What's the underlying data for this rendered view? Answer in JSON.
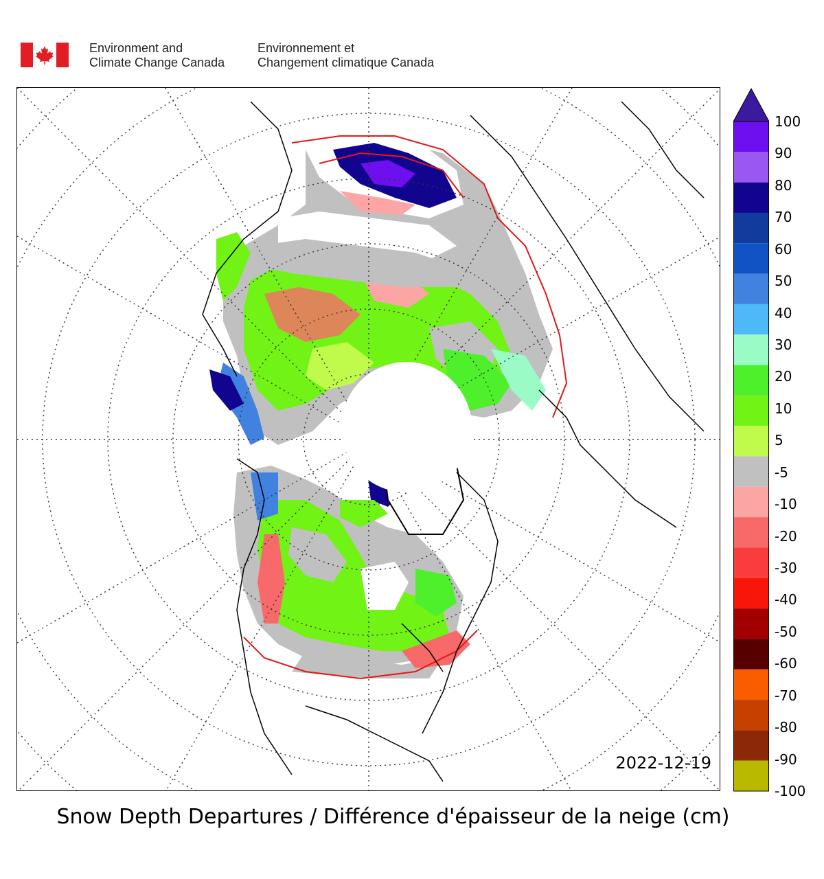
{
  "agency": {
    "english_line1": "Environment and",
    "english_line2": "Climate Change Canada",
    "french_line1": "Environnement et",
    "french_line2": "Changement climatique Canada",
    "logo_icon": "canada-flag-icon"
  },
  "map": {
    "date": "2022-12-19",
    "projection": "north polar stereographic",
    "graticule": "dotted",
    "land_outline_color": "#000000",
    "contour_color": "#e21818"
  },
  "colorbar": {
    "labels": [
      "100",
      "90",
      "80",
      "70",
      "60",
      "50",
      "40",
      "30",
      "20",
      "10",
      "5",
      "-5",
      "-10",
      "-20",
      "-30",
      "-40",
      "-50",
      "-60",
      "-70",
      "-80",
      "-90",
      "-100"
    ],
    "colors": [
      "#6e0ff0",
      "#9b57f2",
      "#11058f",
      "#123b9e",
      "#1152c4",
      "#4181e0",
      "#4db9f7",
      "#9bfbc6",
      "#4ef02c",
      "#71f315",
      "#c0fb4c",
      "#c0c0c0",
      "#fba5a5",
      "#f86a6a",
      "#f93c3c",
      "#f8150a",
      "#a20000",
      "#570000",
      "#fa5d00",
      "#c84000",
      "#8c2807",
      "#b9b900"
    ],
    "extend_color": "#3b1a9e"
  },
  "caption": "Snow Depth Departures / Différence d'épaisseur de la neige (cm)"
}
